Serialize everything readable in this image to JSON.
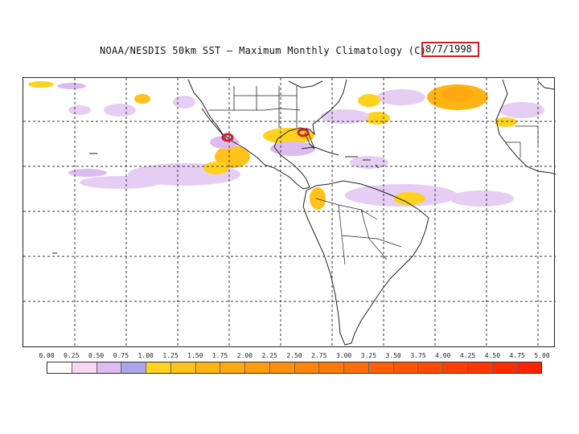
{
  "title": {
    "text": "NOAA/NESDIS 50km SST — Maximum Monthly Climatology (C)",
    "date": "8/7/1998"
  },
  "colors": {
    "highlight_box": "#d21d1d",
    "hotspot_marker": "#d21d1d",
    "coastline": "#222222"
  },
  "legend": {
    "labels": [
      "0.00",
      "0.25",
      "0.50",
      "0.75",
      "1.00",
      "1.25",
      "1.50",
      "1.75",
      "2.00",
      "2.25",
      "2.50",
      "2.75",
      "3.00",
      "3.25",
      "3.50",
      "3.75",
      "4.00",
      "4.25",
      "4.50",
      "4.75",
      "5.00"
    ],
    "colors": [
      "#ffffff",
      "#f6d6f3",
      "#dcbcf0",
      "#a9a6ee",
      "#ffd21f",
      "#ffc21a",
      "#ffb414",
      "#ffa812",
      "#ff9c10",
      "#ff900e",
      "#ff840c",
      "#ff780a",
      "#ff6c08",
      "#ff6006",
      "#ff5404",
      "#ff4a03",
      "#ff4002",
      "#ff3601",
      "#ff2c00",
      "#ff2200"
    ]
  },
  "map": {
    "gridlines": "dashed lat/lon grid",
    "markers": [
      "hotspot-west-mexico",
      "hotspot-florida"
    ]
  }
}
